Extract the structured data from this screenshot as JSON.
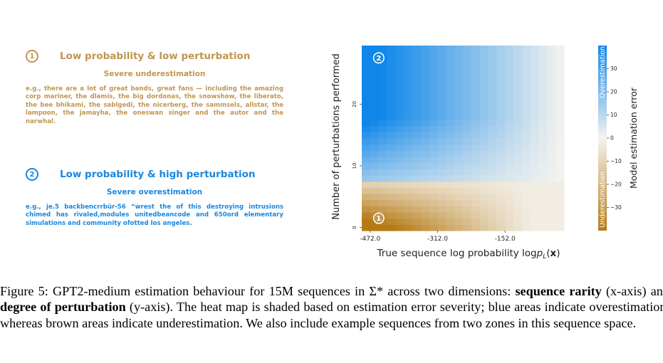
{
  "annotations": [
    {
      "number": "1",
      "title": "Low probability & low perturbation",
      "subtitle": "Severe underestimation",
      "example": "e.g., there are a lot of great bands, great fans — including the amazing corp mariner, the dlamis, the big dordonas, the snowshow, the liberato, the bee bhikami, the sablgedi, the nicerberg, the sammsels, allstar, the lampoon, the jamayha, the oneswan singer and the autor and the narwhal.",
      "color": "#c09650"
    },
    {
      "number": "2",
      "title": "Low probability & high perturbation",
      "subtitle": "Severe overestimation",
      "example": "e.g., je.5 backbencrrbür-56 “wrest the of this destroying intrusions chimed has rivaled,modules unitedbeancode and 650ord elementary simulations and community ofotted los angeles.",
      "color": "#1a87df"
    }
  ],
  "chart_data": {
    "type": "heatmap",
    "xlabel": "True sequence log probability log",
    "xlabel_p": "p",
    "xlabel_sub": "L",
    "xlabel_arg_open": "(",
    "xlabel_arg": "x",
    "xlabel_arg_close": ")",
    "ylabel": "Number of perturbations performed",
    "x_tick_labels": [
      "-472.0",
      "-312.0",
      "-152.0"
    ],
    "x_tick_values": [
      -472,
      -312,
      -152
    ],
    "x_range": [
      -492,
      -12
    ],
    "y_tick_labels": [
      "0",
      "10",
      "20"
    ],
    "y_tick_values": [
      0,
      10,
      20
    ],
    "y_range": [
      -0.5,
      29.5
    ],
    "grid_cols": 24,
    "grid_rows": 30,
    "colorbar": {
      "label": "Model estimation error",
      "ticks": [
        30,
        20,
        10,
        0,
        -10,
        -20,
        -30
      ],
      "range": [
        -40,
        40
      ],
      "top_label": "Overestimation",
      "bottom_label": "Underestimation",
      "colors": {
        "high": "#0e86ea",
        "mid": "#f5f3ee",
        "low": "#b57a14"
      }
    },
    "markers": [
      {
        "label": "2",
        "x": -472,
        "y": 27.5
      },
      {
        "label": "1",
        "x": -472,
        "y": 1.5
      }
    ]
  },
  "caption": {
    "prefix": "Figure 5: GPT2-medium estimation behaviour for 15M sequences in Σ* across two dimensions: ",
    "bold1": "sequence rarity",
    "mid1": " (x-axis) and ",
    "bold2": "degree of perturbation",
    "rest": " (y-axis).  The heat map is shaded based on estimation error severity; blue areas indicate overestimation, whereas brown areas indicate underestimation. We also include example sequences from two zones in this sequence space."
  }
}
